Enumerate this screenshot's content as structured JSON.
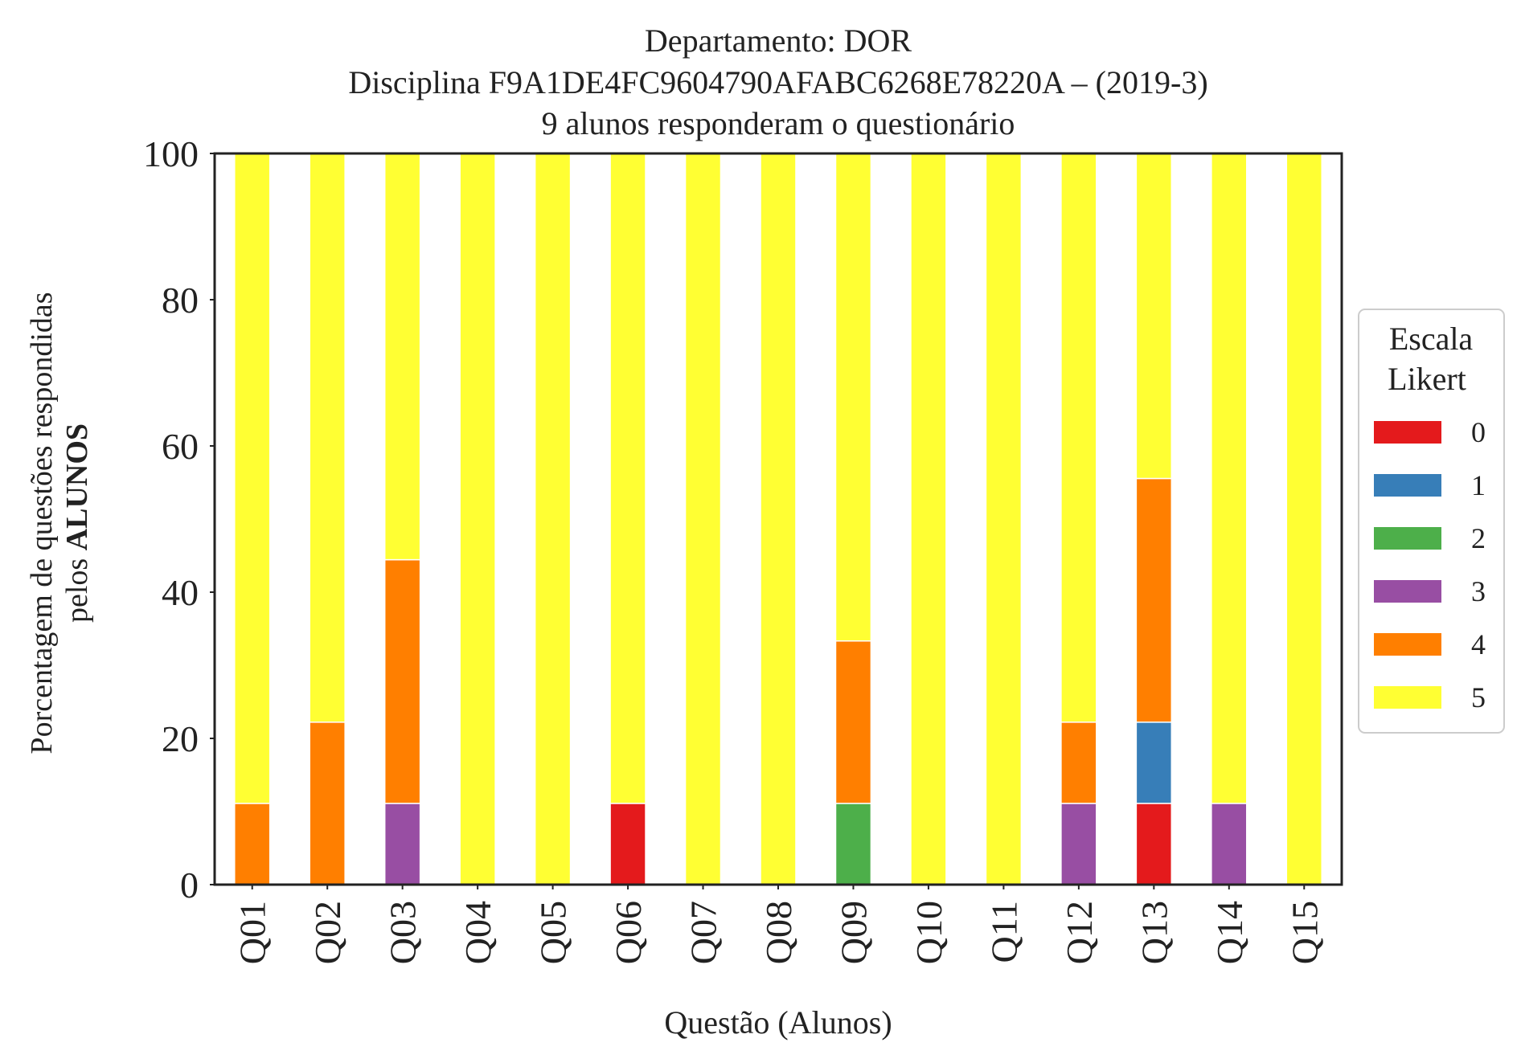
{
  "chart_data": {
    "type": "bar",
    "stacked": true,
    "title_lines": [
      "Departamento: DOR",
      "Disciplina F9A1DE4FC9604790AFABC6268E78220A – (2019-3)",
      "9 alunos responderam o questionário"
    ],
    "xlabel": "Questão (Alunos)",
    "ylabel_line1": "Porcentagem de questões respondidas",
    "ylabel_line2_prefix": "pelos ",
    "ylabel_line2_bold": "ALUNOS",
    "ylim": [
      0,
      100
    ],
    "yticks": [
      "0",
      "20",
      "40",
      "60",
      "80",
      "100"
    ],
    "grid": false,
    "legend_position": "right",
    "legend_title_lines": [
      "Escala",
      "Likert"
    ],
    "categories": [
      "Q01",
      "Q02",
      "Q03",
      "Q04",
      "Q05",
      "Q06",
      "Q07",
      "Q08",
      "Q09",
      "Q10",
      "Q11",
      "Q12",
      "Q13",
      "Q14",
      "Q15"
    ],
    "series": [
      {
        "name": "0",
        "color": "#e41a1c",
        "values": [
          0,
          0,
          0,
          0,
          0,
          11.11,
          0,
          0,
          0,
          0,
          0,
          0,
          11.11,
          0,
          0
        ]
      },
      {
        "name": "1",
        "color": "#377eb8",
        "values": [
          0,
          0,
          0,
          0,
          0,
          0,
          0,
          0,
          0,
          0,
          0,
          0,
          11.11,
          0,
          0
        ]
      },
      {
        "name": "2",
        "color": "#4daf4a",
        "values": [
          0,
          0,
          0,
          0,
          0,
          0,
          0,
          0,
          11.11,
          0,
          0,
          0,
          0,
          0,
          0
        ]
      },
      {
        "name": "3",
        "color": "#984ea3",
        "values": [
          0,
          0,
          11.11,
          0,
          0,
          0,
          0,
          0,
          0,
          0,
          0,
          11.11,
          0,
          11.11,
          0
        ]
      },
      {
        "name": "4",
        "color": "#ff7f00",
        "values": [
          11.11,
          22.22,
          33.33,
          0,
          0,
          0,
          0,
          0,
          22.22,
          0,
          0,
          11.11,
          33.33,
          0,
          0
        ]
      },
      {
        "name": "5",
        "color": "#ffff33",
        "values": [
          88.89,
          77.78,
          55.56,
          100,
          100,
          88.89,
          100,
          100,
          66.67,
          100,
          100,
          77.78,
          44.44,
          88.89,
          100
        ]
      }
    ]
  }
}
